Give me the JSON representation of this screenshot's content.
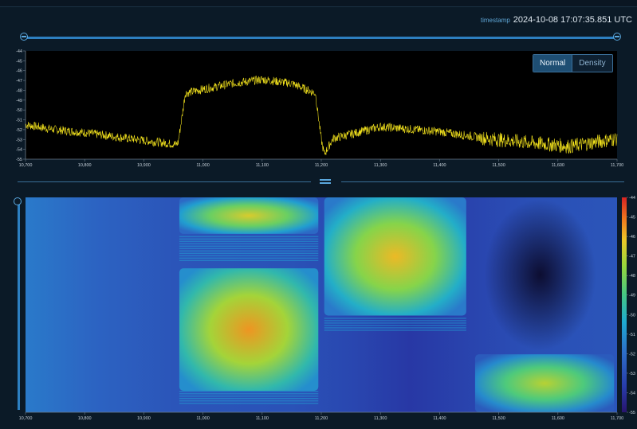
{
  "header": {
    "timestamp_label": "timestamp",
    "timestamp_value": "2024-10-08 17:07:35.851 UTC"
  },
  "view_toggle": {
    "options": [
      "Normal",
      "Density"
    ],
    "selected": "Normal"
  },
  "chart_data": [
    {
      "type": "line",
      "x_ticks": [
        "10,700",
        "10,800",
        "10,900",
        "11,000",
        "11,100",
        "11,200",
        "11,300",
        "11,400",
        "11,500",
        "11,600",
        "11,700"
      ],
      "y_ticks": [
        "-44",
        "-45",
        "-46",
        "-47",
        "-48",
        "-49",
        "-50",
        "-51",
        "-52",
        "-53",
        "-54",
        "-55"
      ],
      "xlim": [
        10700,
        11700
      ],
      "ylim": [
        -55,
        -44
      ],
      "series": [
        {
          "color": "#f2e21d",
          "points": [
            [
              10700,
              -51.5
            ],
            [
              10750,
              -52.0
            ],
            [
              10800,
              -52.3
            ],
            [
              10850,
              -52.7
            ],
            [
              10900,
              -53.1
            ],
            [
              10955,
              -53.5
            ],
            [
              10958,
              -53.3
            ],
            [
              10965,
              -50.5
            ],
            [
              10970,
              -48.3
            ],
            [
              11000,
              -47.9
            ],
            [
              11050,
              -47.3
            ],
            [
              11100,
              -46.9
            ],
            [
              11150,
              -47.3
            ],
            [
              11190,
              -48.3
            ],
            [
              11200,
              -53.0
            ],
            [
              11205,
              -54.5
            ],
            [
              11220,
              -52.9
            ],
            [
              11300,
              -51.7
            ],
            [
              11400,
              -52.2
            ],
            [
              11480,
              -52.9
            ],
            [
              11550,
              -53.3
            ],
            [
              11620,
              -53.7
            ],
            [
              11700,
              -52.9
            ]
          ]
        }
      ]
    },
    {
      "type": "heatmap",
      "x_ticks": [
        "10,700",
        "10,800",
        "10,900",
        "11,000",
        "11,100",
        "11,200",
        "11,300",
        "11,400",
        "11,500",
        "11,600",
        "11,700"
      ],
      "xlim": [
        10700,
        11700
      ],
      "colorbar": {
        "ticks": [
          "-44",
          "-45",
          "-46",
          "-47",
          "-48",
          "-49",
          "-50",
          "-51",
          "-52",
          "-53",
          "-54",
          "-55"
        ],
        "range": [
          -55,
          -44
        ]
      },
      "blocks": [
        {
          "x_start": 10960,
          "x_end": 11195,
          "t_start": 0.0,
          "t_end": 0.17,
          "level": -46.5
        },
        {
          "x_start": 10960,
          "x_end": 11195,
          "t_start": 0.33,
          "t_end": 0.9,
          "level": -45.5
        },
        {
          "x_start": 11205,
          "x_end": 11445,
          "t_start": 0.0,
          "t_end": 0.55,
          "level": -46.0
        },
        {
          "x_start": 11460,
          "x_end": 11695,
          "t_start": 0.73,
          "t_end": 1.0,
          "level": -47.0
        }
      ]
    }
  ]
}
